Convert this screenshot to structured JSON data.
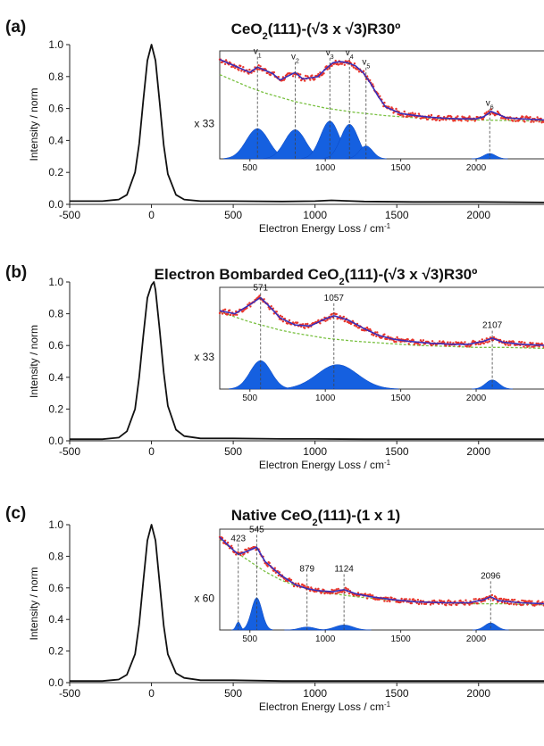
{
  "chart_data": [
    {
      "type": "line",
      "panel_label": "(a)",
      "title_parts": {
        "pre": "CeO",
        "sub": "2",
        "post": "(111)-(√3 x √3)R30º"
      },
      "xlabel": "Electron Energy Loss / cm",
      "xlabel_sup": "-1",
      "ylabel": "Intensity / norm",
      "xlim": [
        -500,
        2400
      ],
      "ylim": [
        0,
        1.0
      ],
      "xticks": [
        "-500",
        "0",
        "500",
        "1000",
        "1500",
        "2000"
      ],
      "yticks": [
        "0.0",
        "0.2",
        "0.4",
        "0.6",
        "0.8",
        "1.0"
      ],
      "series": [
        {
          "x": [
            -500,
            -300,
            -200,
            -150,
            -100,
            -75,
            -50,
            -25,
            0,
            25,
            50,
            75,
            100,
            150,
            200,
            300,
            500,
            800,
            1000,
            1100,
            1300,
            1600,
            2000,
            2400
          ],
          "y": [
            0.02,
            0.02,
            0.03,
            0.06,
            0.2,
            0.38,
            0.65,
            0.9,
            1.0,
            0.9,
            0.64,
            0.37,
            0.19,
            0.06,
            0.03,
            0.02,
            0.02,
            0.018,
            0.02,
            0.025,
            0.018,
            0.015,
            0.015,
            0.012
          ]
        }
      ],
      "inset": {
        "multiplier": "x 33",
        "xticks": [
          "500",
          "1000",
          "1500",
          "2000"
        ],
        "xlim": [
          300,
          2450
        ],
        "ylim": [
          0,
          1
        ],
        "data": {
          "x": [
            300,
            400,
            500,
            550,
            650,
            700,
            800,
            850,
            950,
            1000,
            1050,
            1100,
            1150,
            1200,
            1250,
            1300,
            1350,
            1400,
            1500,
            1600,
            1700,
            1800,
            1900,
            2000,
            2050,
            2080,
            2100,
            2150,
            2200,
            2300,
            2450
          ],
          "y": [
            0.92,
            0.86,
            0.8,
            0.85,
            0.79,
            0.73,
            0.8,
            0.74,
            0.76,
            0.83,
            0.89,
            0.9,
            0.89,
            0.86,
            0.8,
            0.7,
            0.58,
            0.48,
            0.42,
            0.4,
            0.385,
            0.375,
            0.37,
            0.37,
            0.39,
            0.42,
            0.44,
            0.41,
            0.38,
            0.37,
            0.36
          ]
        },
        "baseline": {
          "x": [
            300,
            400,
            500,
            600,
            700,
            800,
            900,
            1000,
            1200,
            1400,
            1600,
            1800,
            2000,
            2200,
            2450
          ],
          "y": [
            0.78,
            0.72,
            0.66,
            0.61,
            0.57,
            0.53,
            0.5,
            0.47,
            0.43,
            0.4,
            0.38,
            0.37,
            0.36,
            0.355,
            0.35
          ]
        },
        "peaks": [
          {
            "center": 550,
            "height": 0.28,
            "width": 75
          },
          {
            "center": 800,
            "height": 0.27,
            "width": 70
          },
          {
            "center": 1030,
            "height": 0.35,
            "width": 62
          },
          {
            "center": 1160,
            "height": 0.32,
            "width": 58
          },
          {
            "center": 1270,
            "height": 0.12,
            "width": 45
          },
          {
            "center": 2090,
            "height": 0.05,
            "width": 40
          }
        ],
        "markers": [
          {
            "x": 550,
            "label": "v",
            "sub": "1",
            "y": 0.97
          },
          {
            "x": 800,
            "label": "v",
            "sub": "2",
            "y": 0.92
          },
          {
            "x": 1030,
            "label": "v",
            "sub": "3",
            "y": 0.96
          },
          {
            "x": 1160,
            "label": "v",
            "sub": "4",
            "y": 0.96
          },
          {
            "x": 1270,
            "label": "v",
            "sub": "5",
            "y": 0.87
          },
          {
            "x": 2090,
            "label": "v",
            "sub": "6",
            "y": 0.49
          }
        ]
      }
    },
    {
      "type": "line",
      "panel_label": "(b)",
      "title_parts": {
        "pre": "Electron Bombarded CeO",
        "sub": "2",
        "post": "(111)-(√3 x √3)R30º"
      },
      "xlabel": "Electron Energy Loss / cm",
      "xlabel_sup": "-1",
      "ylabel": "Intensity / norm",
      "xlim": [
        -500,
        2400
      ],
      "ylim": [
        0,
        1.0
      ],
      "xticks": [
        "-500",
        "0",
        "500",
        "1000",
        "1500",
        "2000"
      ],
      "yticks": [
        "0.0",
        "0.2",
        "0.4",
        "0.6",
        "0.8",
        "1.0"
      ],
      "series": [
        {
          "x": [
            -500,
            -300,
            -200,
            -150,
            -100,
            -75,
            -50,
            -25,
            0,
            15,
            25,
            50,
            75,
            100,
            150,
            200,
            300,
            500,
            800,
            1000,
            1300,
            1600,
            2000,
            2400
          ],
          "y": [
            0.01,
            0.01,
            0.02,
            0.06,
            0.2,
            0.4,
            0.66,
            0.9,
            0.98,
            1.0,
            0.95,
            0.7,
            0.43,
            0.22,
            0.07,
            0.03,
            0.015,
            0.015,
            0.012,
            0.012,
            0.01,
            0.01,
            0.01,
            0.01
          ]
        }
      ],
      "inset": {
        "multiplier": "x 33",
        "xticks": [
          "500",
          "1000",
          "1500",
          "2000"
        ],
        "xlim": [
          300,
          2450
        ],
        "ylim": [
          0,
          1
        ],
        "data": {
          "x": [
            300,
            400,
            500,
            570,
            650,
            700,
            800,
            900,
            1000,
            1057,
            1150,
            1250,
            1350,
            1450,
            1550,
            1700,
            1850,
            1950,
            2050,
            2107,
            2180,
            2300,
            2450
          ],
          "y": [
            0.77,
            0.74,
            0.83,
            0.9,
            0.78,
            0.7,
            0.63,
            0.62,
            0.69,
            0.72,
            0.68,
            0.6,
            0.53,
            0.49,
            0.47,
            0.45,
            0.44,
            0.44,
            0.47,
            0.5,
            0.46,
            0.44,
            0.43
          ]
        },
        "baseline": {
          "x": [
            300,
            400,
            500,
            600,
            700,
            800,
            1000,
            1200,
            1400,
            1600,
            1800,
            2000,
            2200,
            2450
          ],
          "y": [
            0.76,
            0.71,
            0.66,
            0.62,
            0.58,
            0.55,
            0.5,
            0.47,
            0.45,
            0.43,
            0.42,
            0.41,
            0.41,
            0.4
          ]
        },
        "peaks": [
          {
            "center": 571,
            "height": 0.28,
            "width": 70
          },
          {
            "center": 1080,
            "height": 0.24,
            "width": 135
          },
          {
            "center": 2107,
            "height": 0.09,
            "width": 45
          }
        ],
        "markers": [
          {
            "x": 571,
            "label": "571",
            "sub": "",
            "y": 0.97
          },
          {
            "x": 1057,
            "label": "1057",
            "sub": "",
            "y": 0.87
          },
          {
            "x": 2107,
            "label": "2107",
            "sub": "",
            "y": 0.6
          }
        ]
      }
    },
    {
      "type": "line",
      "panel_label": "(c)",
      "title_parts": {
        "pre": "Native CeO",
        "sub": "2",
        "post": "(111)-(1 x 1)"
      },
      "xlabel": "Electron Energy Loss / cm",
      "xlabel_sup": "-1",
      "ylabel": "Intensity / norm",
      "xlim": [
        -500,
        2400
      ],
      "ylim": [
        0,
        1.0
      ],
      "xticks": [
        "-500",
        "0",
        "500",
        "1000",
        "1500",
        "2000"
      ],
      "yticks": [
        "0.0",
        "0.2",
        "0.4",
        "0.6",
        "0.8",
        "1.0"
      ],
      "series": [
        {
          "x": [
            -500,
            -300,
            -200,
            -150,
            -100,
            -75,
            -50,
            -25,
            0,
            25,
            50,
            75,
            100,
            150,
            200,
            300,
            500,
            800,
            1000,
            1300,
            1600,
            2000,
            2400
          ],
          "y": [
            0.01,
            0.01,
            0.02,
            0.05,
            0.18,
            0.37,
            0.64,
            0.9,
            1.0,
            0.9,
            0.63,
            0.36,
            0.18,
            0.06,
            0.03,
            0.015,
            0.015,
            0.01,
            0.01,
            0.01,
            0.01,
            0.01,
            0.01
          ]
        }
      ],
      "inset": {
        "multiplier": "x 60",
        "xticks": [
          "500",
          "1000",
          "1500",
          "2000"
        ],
        "xlim": [
          300,
          2450
        ],
        "ylim": [
          0,
          1
        ],
        "data": {
          "x": [
            300,
            350,
            400,
            423,
            480,
            545,
            600,
            700,
            800,
            879,
            950,
            1050,
            1124,
            1200,
            1300,
            1450,
            1600,
            1800,
            1950,
            2050,
            2096,
            2150,
            2300,
            2450
          ],
          "y": [
            0.92,
            0.85,
            0.78,
            0.75,
            0.78,
            0.82,
            0.68,
            0.55,
            0.45,
            0.41,
            0.39,
            0.38,
            0.4,
            0.36,
            0.33,
            0.3,
            0.28,
            0.27,
            0.27,
            0.3,
            0.33,
            0.29,
            0.27,
            0.26
          ]
        },
        "baseline": {
          "x": [
            300,
            400,
            500,
            600,
            700,
            800,
            1000,
            1200,
            1400,
            1600,
            1800,
            2000,
            2200,
            2450
          ],
          "y": [
            0.9,
            0.78,
            0.68,
            0.58,
            0.5,
            0.44,
            0.37,
            0.33,
            0.3,
            0.28,
            0.27,
            0.26,
            0.26,
            0.25
          ]
        },
        "peaks": [
          {
            "center": 423,
            "height": 0.08,
            "width": 15
          },
          {
            "center": 545,
            "height": 0.32,
            "width": 35
          },
          {
            "center": 879,
            "height": 0.03,
            "width": 50
          },
          {
            "center": 1124,
            "height": 0.05,
            "width": 60
          },
          {
            "center": 2096,
            "height": 0.07,
            "width": 40
          }
        ],
        "markers": [
          {
            "x": 423,
            "label": "423",
            "sub": "",
            "y": 0.88
          },
          {
            "x": 545,
            "label": "545",
            "sub": "",
            "y": 0.97
          },
          {
            "x": 879,
            "label": "879",
            "sub": "",
            "y": 0.58
          },
          {
            "x": 1124,
            "label": "1124",
            "sub": "",
            "y": 0.58
          },
          {
            "x": 2096,
            "label": "2096",
            "sub": "",
            "y": 0.51
          }
        ]
      }
    }
  ]
}
